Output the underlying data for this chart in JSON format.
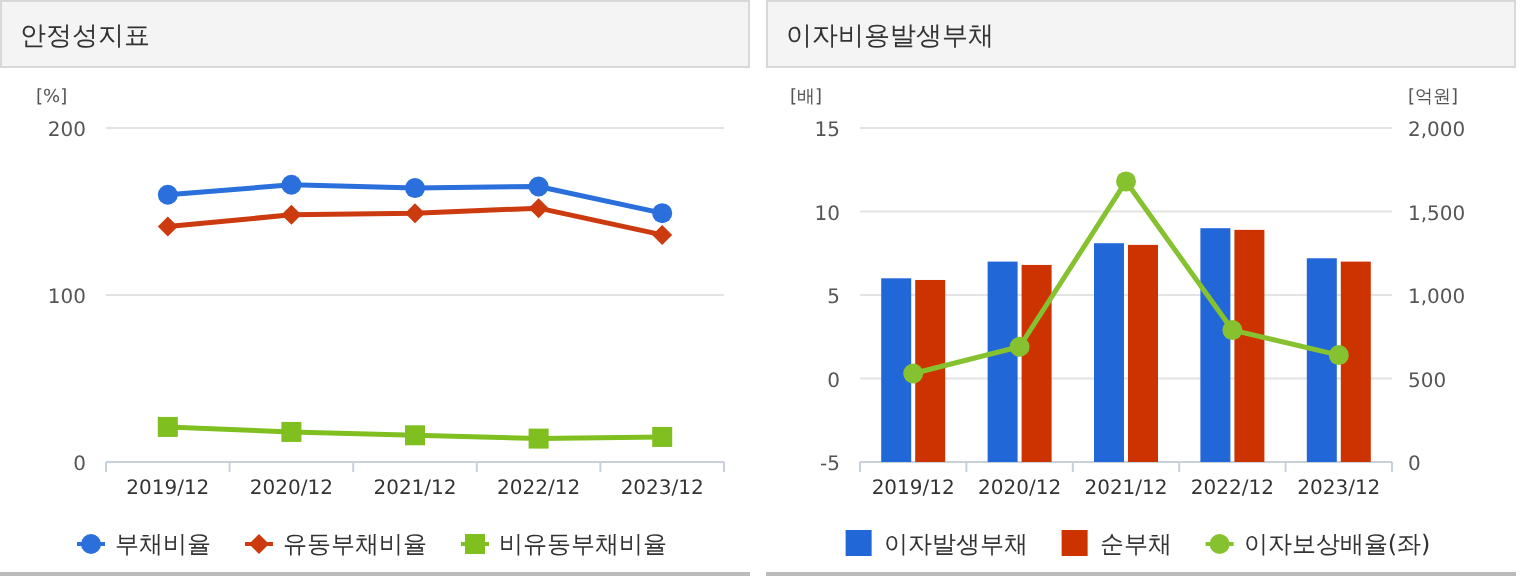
{
  "chart_data": [
    {
      "type": "line",
      "title": "안정성지표",
      "ylabel": "[%]",
      "categories": [
        "2019/12",
        "2020/12",
        "2021/12",
        "2022/12",
        "2023/12"
      ],
      "ylim": [
        0,
        200
      ],
      "yticks": [
        0,
        100,
        200
      ],
      "grid": "y",
      "legend": "bottom",
      "series": [
        {
          "name": "부채비율",
          "color": "#2a6fdb",
          "marker": "circle",
          "values": [
            160,
            166,
            164,
            165,
            149
          ]
        },
        {
          "name": "유동부채비율",
          "color": "#cc3a10",
          "marker": "diamond",
          "values": [
            141,
            148,
            149,
            152,
            136
          ]
        },
        {
          "name": "비유동부채비율",
          "color": "#7fbf1f",
          "marker": "square",
          "values": [
            21,
            18,
            16,
            14,
            15
          ]
        }
      ]
    },
    {
      "type": "bar",
      "title": "이자비용발생부채",
      "ylabel": "[배]",
      "y2label": "[억원]",
      "categories": [
        "2019/12",
        "2020/12",
        "2021/12",
        "2022/12",
        "2023/12"
      ],
      "ylim": [
        -5,
        15
      ],
      "yticks": [
        -5,
        0,
        5,
        10,
        15
      ],
      "y2lim": [
        0,
        2000
      ],
      "y2ticks": [
        0,
        500,
        {
          "value": 1000,
          "label": "1,000"
        },
        {
          "value": 1500,
          "label": "1,500"
        },
        {
          "value": 2000,
          "label": "2,000"
        }
      ],
      "grid": "y",
      "legend": "bottom",
      "series": [
        {
          "name": "이자발생부채",
          "color": "#2267d8",
          "axis": "y2",
          "values": [
            1100,
            1200,
            1310,
            1400,
            1220
          ]
        },
        {
          "name": "순부채",
          "color": "#cc3300",
          "axis": "y2",
          "values": [
            1090,
            1180,
            1300,
            1390,
            1200
          ]
        },
        {
          "name": "이자보상배율(좌)",
          "color": "#86c230",
          "type": "line",
          "marker": "circle",
          "values": [
            0.3,
            1.9,
            11.8,
            2.9,
            1.4
          ]
        }
      ]
    }
  ]
}
